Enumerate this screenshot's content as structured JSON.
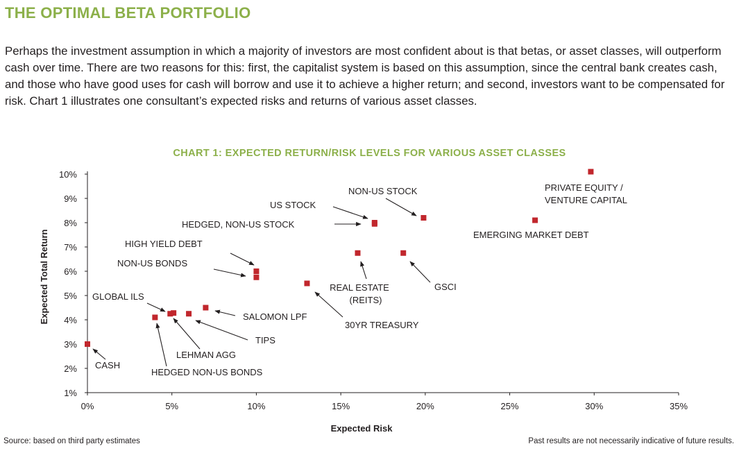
{
  "page": {
    "title": "THE OPTIMAL BETA PORTFOLIO",
    "intro": "Perhaps the investment assumption in which a majority of investors are most confident about is that betas, or asset classes, will outperform cash over time. There are two reasons for this: first, the capitalist system is based on this assumption, since the central bank creates cash, and those who have good uses for cash will borrow and use it to achieve a higher return; and second, investors want to be compensated for risk. Chart 1 illustrates one consultant’s expected risks and returns of various asset classes.",
    "source": "Source: based on third party estimates",
    "disclaimer": "Past results are not necessarily indicative of future results."
  },
  "colors": {
    "accent": "#8cb04a",
    "marker": "#c1272d",
    "text": "#231f20"
  },
  "chart_data": {
    "type": "scatter",
    "title": "CHART 1: EXPECTED RETURN/RISK LEVELS FOR VARIOUS ASSET CLASSES",
    "xlabel": "Expected Risk",
    "ylabel": "Expected Total Return",
    "xlim": [
      0,
      35
    ],
    "ylim": [
      1,
      10
    ],
    "x_ticks": [
      0,
      5,
      10,
      15,
      20,
      25,
      30,
      35
    ],
    "y_ticks": [
      1,
      2,
      3,
      4,
      5,
      6,
      7,
      8,
      9,
      10
    ],
    "x_tick_labels": [
      "0%",
      "5%",
      "10%",
      "15%",
      "20%",
      "25%",
      "30%",
      "35%"
    ],
    "y_tick_labels": [
      "1%",
      "2%",
      "3%",
      "4%",
      "5%",
      "6%",
      "7%",
      "8%",
      "9%",
      "10%"
    ],
    "grid": false,
    "points": [
      {
        "label": "CASH",
        "x": 0,
        "y": 3.0
      },
      {
        "label": "HEDGED NON-US BONDS",
        "x": 4.0,
        "y": 4.1
      },
      {
        "label": "GLOBAL ILS",
        "x": 4.9,
        "y": 4.25
      },
      {
        "label": "LEHMAN AGG",
        "x": 5.1,
        "y": 4.28
      },
      {
        "label": "TIPS",
        "x": 6.0,
        "y": 4.25
      },
      {
        "label": "SALOMON LPF",
        "x": 7.0,
        "y": 4.5
      },
      {
        "label": "HIGH YIELD DEBT",
        "x": 10.0,
        "y": 6.0
      },
      {
        "label": "NON-US BONDS",
        "x": 10.0,
        "y": 5.75
      },
      {
        "label": "30YR TREASURY",
        "x": 13.0,
        "y": 5.5
      },
      {
        "label": "REAL ESTATE (REITS)",
        "x": 16.0,
        "y": 6.75
      },
      {
        "label": "US STOCK",
        "x": 17.0,
        "y": 8.0
      },
      {
        "label": "HEDGED, NON-US STOCK",
        "x": 17.0,
        "y": 7.95
      },
      {
        "label": "GSCI",
        "x": 18.7,
        "y": 6.75
      },
      {
        "label": "NON-US STOCK",
        "x": 19.9,
        "y": 8.2
      },
      {
        "label": "EMERGING MARKET DEBT",
        "x": 26.5,
        "y": 8.1
      },
      {
        "label": "PRIVATE EQUITY / VENTURE CAPITAL",
        "x": 29.8,
        "y": 10.1
      }
    ]
  }
}
